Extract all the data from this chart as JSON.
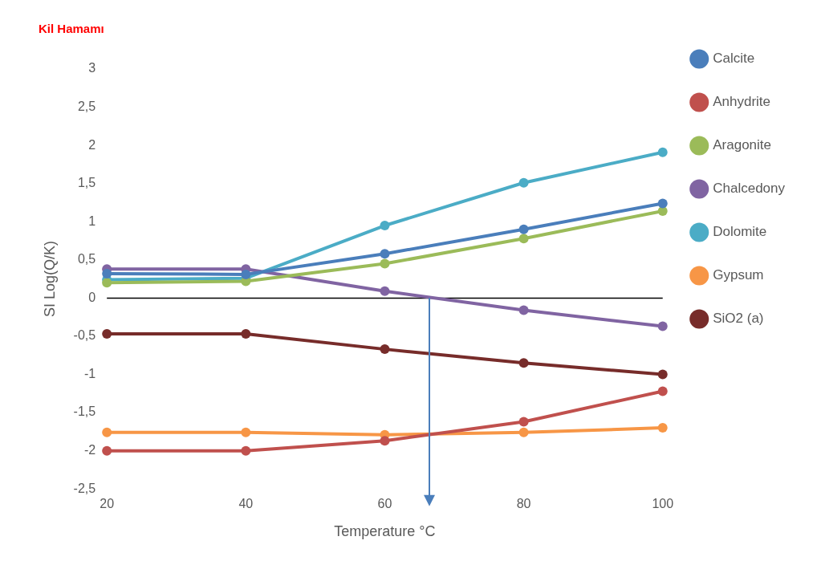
{
  "chart_data": {
    "type": "line",
    "title": "Kil Hamamı",
    "xlabel": "Temperature °C",
    "ylabel": "SI Log(Q/K)",
    "x": [
      20,
      40,
      60,
      80,
      100
    ],
    "series": [
      {
        "name": "Calcite",
        "color": "#4a7ebb",
        "values": [
          0.32,
          0.31,
          0.58,
          0.9,
          1.24
        ]
      },
      {
        "name": "Anhydrite",
        "color": "#c0504d",
        "values": [
          -2,
          -2,
          -1.87,
          -1.62,
          -1.22
        ]
      },
      {
        "name": "Aragonite",
        "color": "#9bbb59",
        "values": [
          0.2,
          0.22,
          0.45,
          0.78,
          1.14
        ]
      },
      {
        "name": "Chalcedony",
        "color": "#8064a2",
        "values": [
          0.38,
          0.38,
          0.09,
          -0.16,
          -0.37
        ]
      },
      {
        "name": "Dolomite",
        "color": "#4bacc6",
        "values": [
          0.24,
          0.26,
          0.95,
          1.51,
          1.91
        ]
      },
      {
        "name": "Gypsum",
        "color": "#f79646",
        "values": [
          -1.76,
          -1.76,
          -1.79,
          -1.76,
          -1.7
        ]
      },
      {
        "name": "SiO2 (a)",
        "color": "#772c2a",
        "values": [
          -0.47,
          -0.47,
          -0.67,
          -0.85,
          -1.0
        ]
      }
    ],
    "xlim": [
      20,
      100
    ],
    "xticks": [
      20,
      40,
      60,
      80,
      100
    ],
    "ylim": [
      -2.5,
      3
    ],
    "yticks": [
      {
        "value": -2.5,
        "label": "-2,5"
      },
      -2,
      {
        "value": -1.5,
        "label": "-1,5"
      },
      -1,
      {
        "value": -0.5,
        "label": "-0,5"
      },
      0,
      {
        "value": 0.5,
        "label": "0,5"
      },
      1,
      {
        "value": 1.5,
        "label": "1,5"
      },
      2,
      {
        "value": 2.5,
        "label": "2,5"
      },
      3
    ],
    "ref_lines": [
      {
        "axis": "y",
        "value": 0,
        "color": "#000000"
      }
    ],
    "grid": false,
    "legend": "right",
    "marker": "circle",
    "line_style": "solid"
  }
}
